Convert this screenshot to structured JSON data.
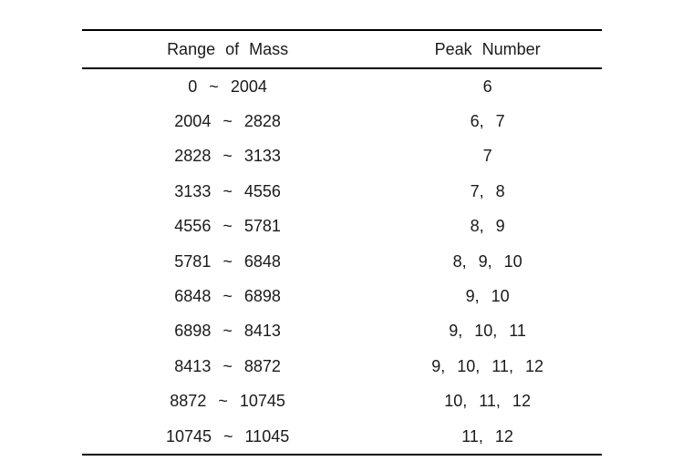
{
  "table": {
    "headers": {
      "range": "Range of Mass",
      "peak": "Peak Number"
    },
    "rows": [
      {
        "range": "0 ~ 2004",
        "peak": "6"
      },
      {
        "range": "2004 ~ 2828",
        "peak": "6, 7"
      },
      {
        "range": "2828 ~ 3133",
        "peak": "7"
      },
      {
        "range": "3133 ~ 4556",
        "peak": "7, 8"
      },
      {
        "range": "4556 ~ 5781",
        "peak": "8, 9"
      },
      {
        "range": "5781 ~ 6848",
        "peak": "8, 9, 10"
      },
      {
        "range": "6848 ~ 6898",
        "peak": "9, 10"
      },
      {
        "range": "6898 ~ 8413",
        "peak": "9, 10, 11"
      },
      {
        "range": "8413 ~ 8872",
        "peak": "9, 10, 11, 12"
      },
      {
        "range": "8872 ~ 10745",
        "peak": "10, 11, 12"
      },
      {
        "range": "10745 ~ 11045",
        "peak": "11, 12"
      }
    ]
  },
  "colors": {
    "background": "#ffffff",
    "text": "#1a1a1a",
    "rule": "#000000"
  }
}
